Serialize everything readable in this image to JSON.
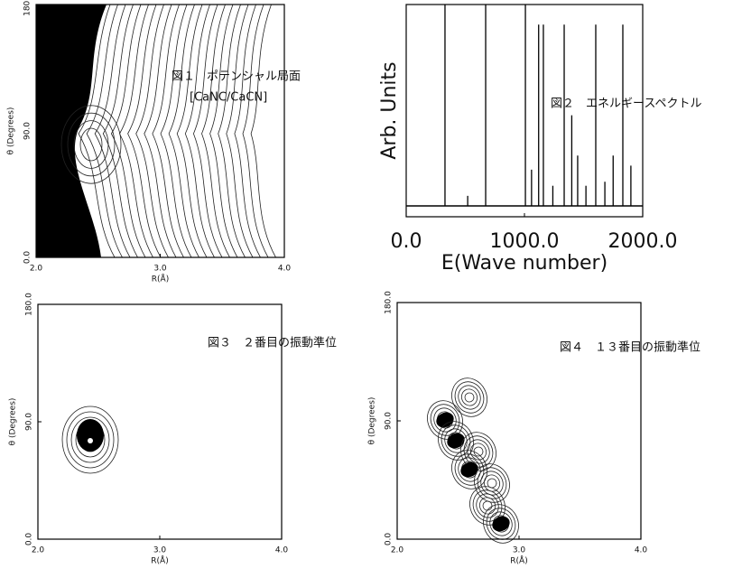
{
  "panels": [
    {
      "kind": "contour",
      "label": "図１　ポテンシャル局面",
      "sublabel": "[CaNC/CaCN]",
      "x_label": "R(Å)",
      "y_label": "θ (Degrees)",
      "xlim": [
        2,
        4
      ],
      "xticks": [
        {
          "value": 2,
          "label": "2.0"
        },
        {
          "value": 3,
          "label": "3.0"
        },
        {
          "value": 4,
          "label": "4.0"
        }
      ],
      "ylim": [
        0,
        180
      ],
      "yticks": [
        {
          "value": 0,
          "label": "0.0"
        },
        {
          "value": 90,
          "label": "90.0"
        },
        {
          "value": 180,
          "label": "180.0"
        }
      ]
    },
    {
      "kind": "spectrum",
      "label": "図２　エネルギースペクトル",
      "x_label": "E(Wave number)",
      "y_label": "Arb. Units",
      "xlim": [
        0,
        2000
      ],
      "xticks": [
        {
          "value": 0,
          "label": "0.0"
        },
        {
          "value": 1000,
          "label": "1000.0"
        },
        {
          "value": 2000,
          "label": "2000.0"
        }
      ],
      "ylim": [
        0,
        1
      ],
      "peaks": {
        "x": [
          328,
          520,
          672,
          1008,
          1060,
          1120,
          1160,
          1240,
          1336,
          1400,
          1450,
          1520,
          1603,
          1680,
          1750,
          1832,
          1900
        ],
        "height": [
          1.0,
          0.05,
          1.0,
          1.0,
          0.18,
          0.9,
          0.9,
          0.1,
          0.9,
          0.45,
          0.25,
          0.1,
          0.9,
          0.12,
          0.25,
          0.9,
          0.2
        ]
      }
    },
    {
      "kind": "contour",
      "label": "図３　２番目の振動準位",
      "x_label": "R(Å)",
      "y_label": "θ (Degrees)",
      "xlim": [
        2,
        4
      ],
      "xticks": [
        {
          "value": 2,
          "label": "2.0"
        },
        {
          "value": 3,
          "label": "3.0"
        },
        {
          "value": 4,
          "label": "4.0"
        }
      ],
      "ylim": [
        0,
        180
      ],
      "yticks": [
        {
          "value": 0,
          "label": "0.0"
        },
        {
          "value": 90,
          "label": "90.0"
        },
        {
          "value": 180,
          "label": "180.0"
        }
      ]
    },
    {
      "kind": "contour",
      "label": "図４　１３番目の振動準位",
      "x_label": "R(Å)",
      "y_label": "θ (Degrees)",
      "xlim": [
        2,
        4
      ],
      "xticks": [
        {
          "value": 2,
          "label": "2.0"
        },
        {
          "value": 3,
          "label": "3.0"
        },
        {
          "value": 4,
          "label": "4.0"
        }
      ],
      "ylim": [
        0,
        180
      ],
      "yticks": [
        {
          "value": 0,
          "label": "0.0"
        },
        {
          "value": 90,
          "label": "90.0"
        },
        {
          "value": 180,
          "label": "180.0"
        }
      ]
    }
  ]
}
